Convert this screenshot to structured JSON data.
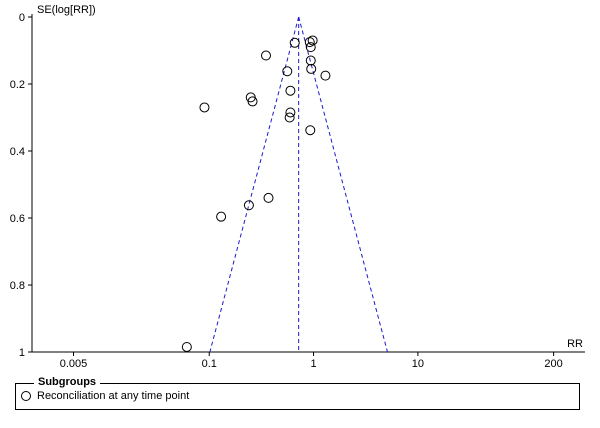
{
  "chart_data": {
    "type": "scatter",
    "title": "",
    "xlabel": "RR",
    "ylabel": "SE(log[RR])",
    "x_scale": "log",
    "xlim": [
      0.002,
      400
    ],
    "ylim": [
      0,
      1
    ],
    "y_inverted": true,
    "x_ticks": [
      {
        "value": 0.005,
        "label": "0.005"
      },
      {
        "value": 0.1,
        "label": "0.1"
      },
      {
        "value": 1,
        "label": "1"
      },
      {
        "value": 10,
        "label": "10"
      },
      {
        "value": 200,
        "label": "200"
      }
    ],
    "y_ticks": [
      {
        "value": 0,
        "label": "0"
      },
      {
        "value": 0.2,
        "label": "0.2"
      },
      {
        "value": 0.4,
        "label": "0.4"
      },
      {
        "value": 0.6,
        "label": "0.6"
      },
      {
        "value": 0.8,
        "label": "0.8"
      },
      {
        "value": 1,
        "label": "1"
      }
    ],
    "pooled_estimate": 0.72,
    "funnel_se_max": 1.0,
    "series": [
      {
        "name": "Reconciliation at any time point",
        "marker": "open-circle",
        "points": [
          {
            "x": 0.92,
            "y": 0.075
          },
          {
            "x": 0.98,
            "y": 0.07
          },
          {
            "x": 0.94,
            "y": 0.09
          },
          {
            "x": 0.66,
            "y": 0.077
          },
          {
            "x": 0.35,
            "y": 0.115
          },
          {
            "x": 0.94,
            "y": 0.13
          },
          {
            "x": 0.95,
            "y": 0.155
          },
          {
            "x": 0.56,
            "y": 0.162
          },
          {
            "x": 1.3,
            "y": 0.175
          },
          {
            "x": 0.6,
            "y": 0.22
          },
          {
            "x": 0.25,
            "y": 0.24
          },
          {
            "x": 0.26,
            "y": 0.252
          },
          {
            "x": 0.09,
            "y": 0.27
          },
          {
            "x": 0.6,
            "y": 0.285
          },
          {
            "x": 0.59,
            "y": 0.3
          },
          {
            "x": 0.93,
            "y": 0.338
          },
          {
            "x": 0.37,
            "y": 0.54
          },
          {
            "x": 0.24,
            "y": 0.562
          },
          {
            "x": 0.13,
            "y": 0.596
          },
          {
            "x": 0.061,
            "y": 0.985
          }
        ]
      }
    ]
  },
  "legend": {
    "title": "Subgroups",
    "items": [
      "Reconciliation at any time point"
    ]
  }
}
